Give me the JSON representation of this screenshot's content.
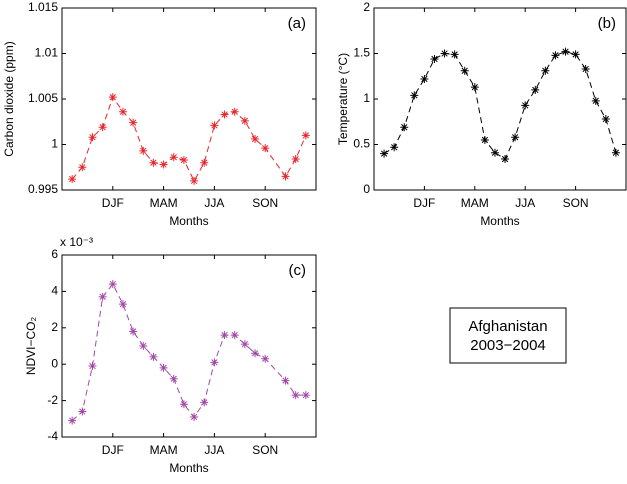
{
  "chart_data": [
    {
      "type": "line",
      "label": "(a)",
      "ylabel": "Carbon dioxide (ppm)",
      "xlabel": "Months",
      "color": "#e8262b",
      "line_style": "dashed",
      "x": [
        1,
        2,
        3,
        4,
        5,
        6,
        7,
        8,
        9,
        10,
        11,
        12,
        13,
        14,
        15,
        16,
        17,
        18,
        19,
        20,
        22,
        23,
        24
      ],
      "values": [
        0.9962,
        0.9975,
        1.0008,
        1.0019,
        1.0052,
        1.0036,
        1.0024,
        0.9993,
        0.998,
        0.9978,
        0.9986,
        0.9983,
        0.996,
        0.998,
        1.0021,
        1.0033,
        1.0036,
        1.0026,
        1.0006,
        0.9996,
        0.9965,
        0.9984,
        1.001
      ],
      "xlim": [
        0,
        25
      ],
      "xticks": [
        {
          "value": 5,
          "label": "DJF"
        },
        {
          "value": 10,
          "label": "MAM"
        },
        {
          "value": 15,
          "label": "JJA"
        },
        {
          "value": 20,
          "label": "SON"
        }
      ],
      "ylim": [
        0.995,
        1.015
      ],
      "yticks": [
        0.995,
        1,
        1.005,
        1.01,
        1.015
      ]
    },
    {
      "type": "line",
      "label": "(b)",
      "ylabel": "Temperature (°C)",
      "xlabel": "Months",
      "color": "#000000",
      "line_style": "dashed",
      "x": [
        1,
        2,
        3,
        4,
        5,
        6,
        7,
        8,
        9,
        10,
        11,
        12,
        13,
        14,
        15,
        16,
        17,
        18,
        19,
        20,
        21,
        22,
        23,
        24
      ],
      "values": [
        0.4,
        0.47,
        0.69,
        1.04,
        1.22,
        1.44,
        1.5,
        1.49,
        1.31,
        1.13,
        0.55,
        0.41,
        0.34,
        0.58,
        0.93,
        1.1,
        1.31,
        1.48,
        1.52,
        1.49,
        1.33,
        0.98,
        0.78,
        0.41
      ],
      "xlim": [
        0,
        25
      ],
      "xticks": [
        {
          "value": 5,
          "label": "DJF"
        },
        {
          "value": 10,
          "label": "MAM"
        },
        {
          "value": 15,
          "label": "JJA"
        },
        {
          "value": 20,
          "label": "SON"
        }
      ],
      "ylim": [
        0,
        2
      ],
      "yticks": [
        0,
        0.5,
        1,
        1.5,
        2
      ]
    },
    {
      "type": "line",
      "label": "(c)",
      "ylabel": "NDVI−CO₂",
      "xlabel": "Months",
      "multiplier": "x 10⁻³",
      "color": "#a347a8",
      "line_style": "dashed",
      "x": [
        1,
        2,
        3,
        4,
        5,
        6,
        7,
        8,
        9,
        10,
        11,
        12,
        13,
        14,
        15,
        16,
        17,
        18,
        19,
        20,
        22,
        23,
        24
      ],
      "values": [
        -3.1,
        -2.6,
        -0.1,
        3.7,
        4.4,
        3.3,
        1.8,
        1.0,
        0.4,
        -0.2,
        -0.8,
        -2.2,
        -2.9,
        -2.1,
        0.1,
        1.6,
        1.6,
        1.1,
        0.6,
        0.3,
        -0.9,
        -1.7,
        -1.7
      ],
      "xlim": [
        0,
        25
      ],
      "xticks": [
        {
          "value": 5,
          "label": "DJF"
        },
        {
          "value": 10,
          "label": "MAM"
        },
        {
          "value": 15,
          "label": "JJA"
        },
        {
          "value": 20,
          "label": "SON"
        }
      ],
      "ylim": [
        -4,
        6
      ],
      "yticks": [
        -4,
        -2,
        0,
        2,
        4,
        6
      ]
    }
  ],
  "annotation": {
    "lines": [
      "Afghanistan",
      "2003−2004"
    ]
  }
}
